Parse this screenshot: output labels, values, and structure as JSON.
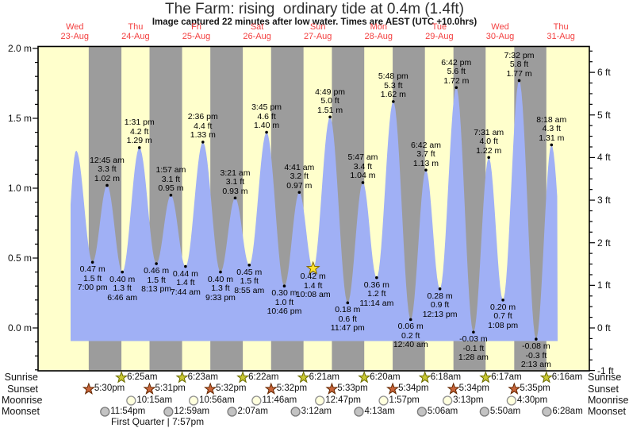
{
  "page": {
    "title": "The Farm: rising  ordinary tide at 0.4m (1.4ft)",
    "subtitle": "Image captured 22 minutes after low water. Times are AEST (UTC +10.0hrs)"
  },
  "colors": {
    "red": "#f34040",
    "day_band": "#ffffcc",
    "night_band": "#9c9c9c",
    "water": "#a0b0f5",
    "frame": "#000000",
    "sunrise_star_fill": "#c9c832",
    "sunrise_star_stroke": "#6b6b00",
    "sunset_star_fill": "#c8643a",
    "sunset_star_stroke": "#642800",
    "moonrise_fill": "#ffffdd",
    "moonrise_stroke": "#909090",
    "moonset_fill": "#c3c3c3",
    "moonset_stroke": "#7a7a7a",
    "current_star_fill": "#ffe430",
    "current_star_stroke": "#806800"
  },
  "chart_data": {
    "type": "area",
    "title": "The Farm: rising  ordinary tide at 0.4m (1.4ft)",
    "subtitle": "Image captured 22 minutes after low water. Times are AEST (UTC +10.0hrs)",
    "timezone": "AEST (UTC +10.0hrs)",
    "ylabel_left_unit": "m",
    "ylabel_right_unit": "ft",
    "ylim_m": [
      -0.31,
      2.0
    ],
    "grid": false,
    "days": [
      {
        "name": "Wed",
        "date": "23-Aug"
      },
      {
        "name": "Thu",
        "date": "24-Aug"
      },
      {
        "name": "Fri",
        "date": "25-Aug"
      },
      {
        "name": "Sat",
        "date": "26-Aug"
      },
      {
        "name": "Sun",
        "date": "27-Aug"
      },
      {
        "name": "Mon",
        "date": "28-Aug"
      },
      {
        "name": "Tue",
        "date": "29-Aug"
      },
      {
        "name": "Wed",
        "date": "30-Aug"
      },
      {
        "name": "Thu",
        "date": "31-Aug"
      }
    ],
    "left_ticks": [
      {
        "m": 2.0,
        "label": "2.0 m"
      },
      {
        "m": 1.5,
        "label": "1.5 m"
      },
      {
        "m": 1.0,
        "label": "1.0 m"
      },
      {
        "m": 0.5,
        "label": "0.5 m"
      },
      {
        "m": 0.0,
        "label": "0.0 m"
      }
    ],
    "right_ticks": [
      {
        "ft": 6,
        "label": "6 ft"
      },
      {
        "ft": 5,
        "label": "5 ft"
      },
      {
        "ft": 4,
        "label": "4 ft"
      },
      {
        "ft": 3,
        "label": "3 ft"
      },
      {
        "ft": 2,
        "label": "2 ft"
      },
      {
        "ft": 1,
        "label": "1 ft"
      },
      {
        "ft": 0,
        "label": "0 ft"
      },
      {
        "ft": -1,
        "label": "-1 ft"
      }
    ],
    "night_bands": [
      [
        0.7292,
        1.2674
      ],
      [
        1.7299,
        2.266
      ],
      [
        2.7306,
        3.2653
      ],
      [
        3.7306,
        4.2646
      ],
      [
        4.7313,
        5.2639
      ],
      [
        5.7319,
        6.2625
      ],
      [
        6.7319,
        7.2618
      ],
      [
        7.7326,
        8.2611
      ]
    ],
    "events": [
      {
        "kind": "edge",
        "t": 0.3,
        "h": 0.2
      },
      {
        "kind": "high",
        "t": 0.522,
        "h": 1.27,
        "labeled": false
      },
      {
        "kind": "low",
        "t": 0.7917,
        "h": 0.47,
        "m": "0.47 m",
        "ft": "1.5 ft",
        "time": "7:00 pm"
      },
      {
        "kind": "high",
        "t": 1.0313,
        "h": 1.02,
        "m": "1.02 m",
        "ft": "3.3 ft",
        "time": "12:45 am"
      },
      {
        "kind": "low",
        "t": 1.2819,
        "h": 0.4,
        "m": "0.40 m",
        "ft": "1.3 ft",
        "time": "6:46 am"
      },
      {
        "kind": "high",
        "t": 1.5632,
        "h": 1.29,
        "m": "1.29 m",
        "ft": "4.2 ft",
        "time": "1:31 pm"
      },
      {
        "kind": "low",
        "t": 1.8424,
        "h": 0.46,
        "m": "0.46 m",
        "ft": "1.5 ft",
        "time": "8:13 pm"
      },
      {
        "kind": "high",
        "t": 2.0813,
        "h": 0.95,
        "m": "0.95 m",
        "ft": "3.1 ft",
        "time": "1:57 am"
      },
      {
        "kind": "low",
        "t": 2.3222,
        "h": 0.44,
        "m": "0.44 m",
        "ft": "1.4 ft",
        "time": "7:44 am"
      },
      {
        "kind": "high",
        "t": 2.6083,
        "h": 1.33,
        "m": "1.33 m",
        "ft": "4.4 ft",
        "time": "2:36 pm"
      },
      {
        "kind": "low",
        "t": 2.8979,
        "h": 0.4,
        "m": "0.40 m",
        "ft": "1.3 ft",
        "time": "9:33 pm"
      },
      {
        "kind": "high",
        "t": 3.1396,
        "h": 0.93,
        "m": "0.93 m",
        "ft": "3.1 ft",
        "time": "3:21 am"
      },
      {
        "kind": "low",
        "t": 3.3715,
        "h": 0.45,
        "m": "0.45 m",
        "ft": "1.5 ft",
        "time": "8:55 am"
      },
      {
        "kind": "high",
        "t": 3.6563,
        "h": 1.4,
        "m": "1.40 m",
        "ft": "4.6 ft",
        "time": "3:45 pm"
      },
      {
        "kind": "low",
        "t": 3.9486,
        "h": 0.3,
        "m": "0.30 m",
        "ft": "1.0 ft",
        "time": "10:46 pm"
      },
      {
        "kind": "high",
        "t": 4.1951,
        "h": 0.97,
        "m": "0.97 m",
        "ft": "3.2 ft",
        "time": "4:41 am"
      },
      {
        "kind": "low",
        "t": 4.4222,
        "h": 0.42,
        "m": "0.42 m",
        "ft": "1.4 ft",
        "time": "10:08 am"
      },
      {
        "kind": "high",
        "t": 4.7007,
        "h": 1.51,
        "m": "1.51 m",
        "ft": "5.0 ft",
        "time": "4:49 pm"
      },
      {
        "kind": "low",
        "t": 4.991,
        "h": 0.18,
        "m": "0.18 m",
        "ft": "0.6 ft",
        "time": "11:47 pm"
      },
      {
        "kind": "high",
        "t": 5.241,
        "h": 1.04,
        "m": "1.04 m",
        "ft": "3.4 ft",
        "time": "5:47 am"
      },
      {
        "kind": "low",
        "t": 5.4681,
        "h": 0.36,
        "m": "0.36 m",
        "ft": "1.2 ft",
        "time": "11:14 am"
      },
      {
        "kind": "high",
        "t": 5.7417,
        "h": 1.62,
        "m": "1.62 m",
        "ft": "5.3 ft",
        "time": "5:48 pm"
      },
      {
        "kind": "low",
        "t": 6.0278,
        "h": 0.06,
        "m": "0.06 m",
        "ft": "0.2 ft",
        "time": "12:40 am"
      },
      {
        "kind": "high",
        "t": 6.2792,
        "h": 1.13,
        "m": "1.13 m",
        "ft": "3.7 ft",
        "time": "6:42 am"
      },
      {
        "kind": "low",
        "t": 6.509,
        "h": 0.28,
        "m": "0.28 m",
        "ft": "0.9 ft",
        "time": "12:13 pm"
      },
      {
        "kind": "high",
        "t": 6.7792,
        "h": 1.72,
        "m": "1.72 m",
        "ft": "5.6 ft",
        "time": "6:42 pm"
      },
      {
        "kind": "low",
        "t": 7.0611,
        "h": -0.03,
        "m": "-0.03 m",
        "ft": "-0.1 ft",
        "time": "1:28 am"
      },
      {
        "kind": "high",
        "t": 7.3132,
        "h": 1.22,
        "m": "1.22 m",
        "ft": "4.0 ft",
        "time": "7:31 am"
      },
      {
        "kind": "low",
        "t": 7.5472,
        "h": 0.2,
        "m": "0.20 m",
        "ft": "0.7 ft",
        "time": "1:08 pm"
      },
      {
        "kind": "high",
        "t": 7.8139,
        "h": 1.77,
        "m": "1.77 m",
        "ft": "5.8 ft",
        "time": "7:32 pm"
      },
      {
        "kind": "low",
        "t": 8.0924,
        "h": -0.08,
        "m": "-0.08 m",
        "ft": "-0.3 ft",
        "time": "2:13 am"
      },
      {
        "kind": "high",
        "t": 8.3458,
        "h": 1.31,
        "m": "1.31 m",
        "ft": "4.3 ft",
        "time": "8:18 am"
      },
      {
        "kind": "edge",
        "t": 8.58,
        "h": 0.25
      }
    ],
    "current_marker_event_index": 16
  },
  "almanac": {
    "rows": [
      {
        "name": "Sunrise",
        "icon": "sunrise-star-icon",
        "entries": [
          {
            "time": "6:25am",
            "t": 1.2674
          },
          {
            "time": "6:23am",
            "t": 2.266
          },
          {
            "time": "6:22am",
            "t": 3.2653
          },
          {
            "time": "6:21am",
            "t": 4.2646
          },
          {
            "time": "6:20am",
            "t": 5.2639
          },
          {
            "time": "6:18am",
            "t": 6.2625
          },
          {
            "time": "6:17am",
            "t": 7.2618
          },
          {
            "time": "6:16am",
            "t": 8.2611
          }
        ]
      },
      {
        "name": "Sunset",
        "icon": "sunset-star-icon",
        "entries": [
          {
            "time": "5:30pm",
            "t": 0.7292
          },
          {
            "time": "5:31pm",
            "t": 1.7299
          },
          {
            "time": "5:32pm",
            "t": 2.7306
          },
          {
            "time": "5:32pm",
            "t": 3.7306
          },
          {
            "time": "5:33pm",
            "t": 4.7313
          },
          {
            "time": "5:34pm",
            "t": 5.7319
          },
          {
            "time": "5:34pm",
            "t": 6.7319
          },
          {
            "time": "5:35pm",
            "t": 7.7326
          }
        ]
      },
      {
        "name": "Moonrise",
        "icon": "moonrise-circle-icon",
        "entries": [
          {
            "time": "10:15am",
            "t": 1.4271
          },
          {
            "time": "10:56am",
            "t": 2.4556
          },
          {
            "time": "11:46am",
            "t": 3.4903
          },
          {
            "time": "12:47pm",
            "t": 4.5326
          },
          {
            "time": "1:57pm",
            "t": 5.5813
          },
          {
            "time": "3:13pm",
            "t": 6.634
          },
          {
            "time": "4:30pm",
            "t": 7.6875
          }
        ]
      },
      {
        "name": "Moonset",
        "icon": "moonset-circle-icon",
        "entries": [
          {
            "time": "11:54pm",
            "t": 0.9958
          },
          {
            "time": "12:59am",
            "t": 2.041
          },
          {
            "time": "2:07am",
            "t": 3.0882
          },
          {
            "time": "3:12am",
            "t": 4.1333
          },
          {
            "time": "4:13am",
            "t": 5.1757
          },
          {
            "time": "5:06am",
            "t": 6.2125
          },
          {
            "time": "5:50am",
            "t": 7.2431
          },
          {
            "time": "6:28am",
            "t": 8.2694
          }
        ]
      }
    ],
    "moon_phase": "First Quarter | 7:57pm"
  }
}
